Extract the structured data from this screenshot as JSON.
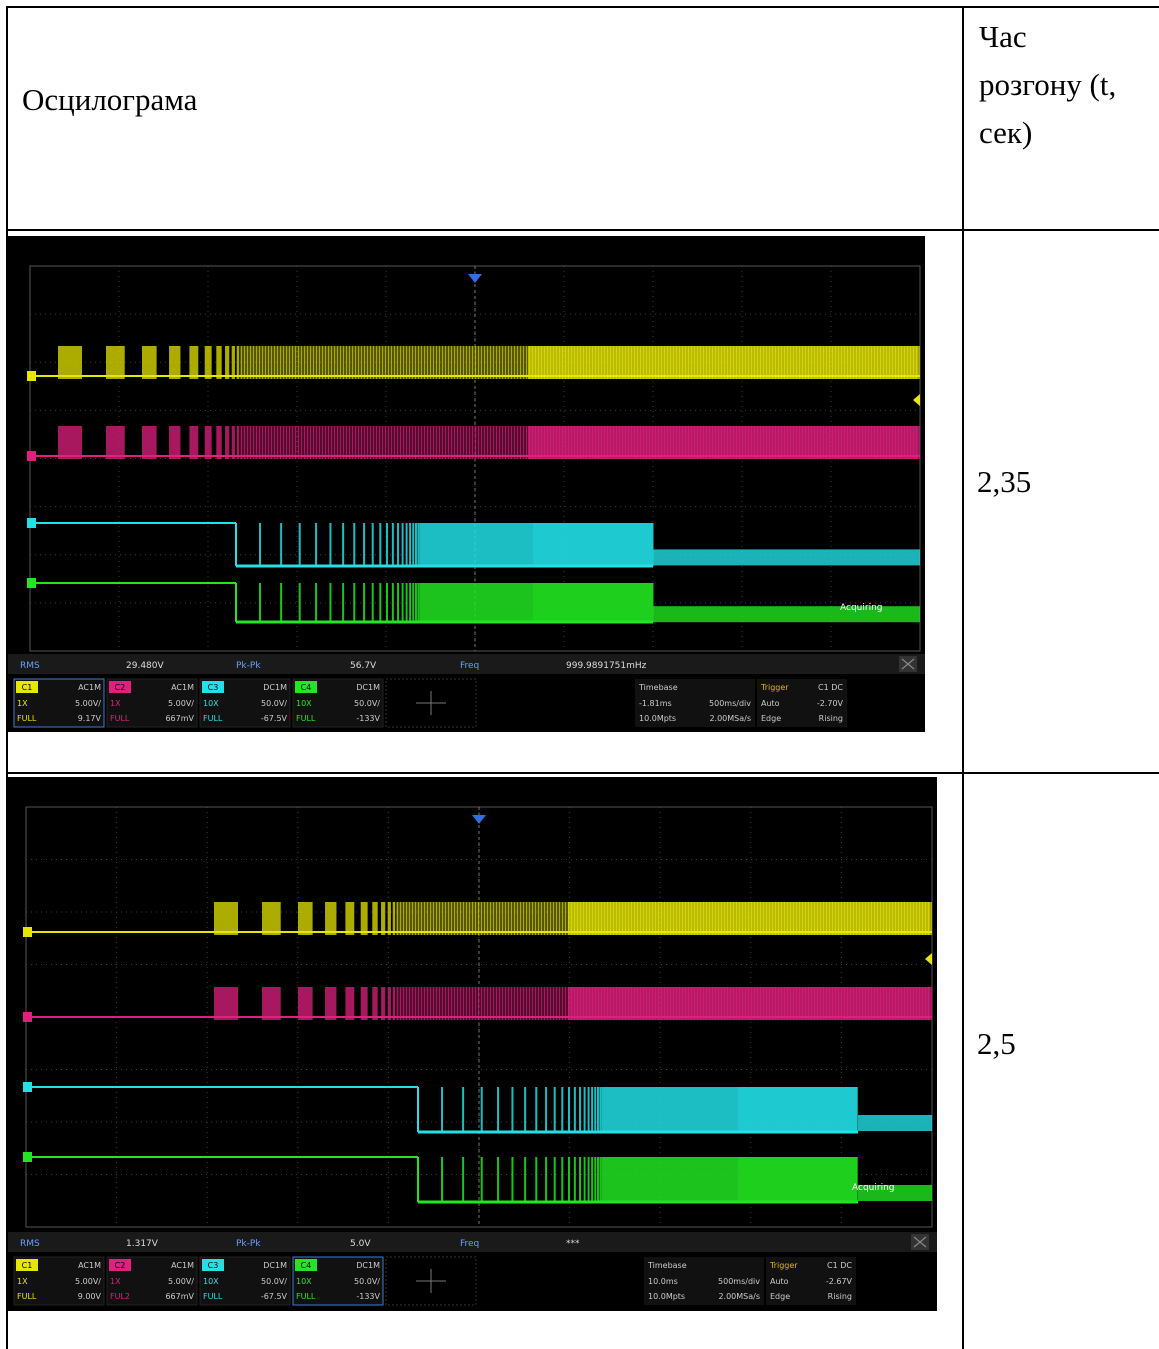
{
  "header": {
    "col1": "Осцилограма",
    "col2_lines": [
      "Час",
      "розгону (t,",
      "сек)"
    ]
  },
  "rows": [
    {
      "value": "2,35",
      "scope": {
        "measure": {
          "rms_label": "RMS",
          "rms": "29.480V",
          "pk_label": "Pk-Pk",
          "pk": "56.7V",
          "freq_label": "Freq",
          "freq": "999.9891751mHz"
        },
        "channels": [
          {
            "id": "C1",
            "coupling": "AC1M",
            "probe": "1X",
            "scale": "5.00V/",
            "bw": "FULL",
            "offset": "9.17V",
            "color": "#e6e600"
          },
          {
            "id": "C2",
            "coupling": "AC1M",
            "probe": "1X",
            "scale": "5.00V/",
            "bw": "FULL",
            "offset": "667mV",
            "color": "#e0207e"
          },
          {
            "id": "C3",
            "coupling": "DC1M",
            "probe": "10X",
            "scale": "50.0V/",
            "bw": "FULL",
            "offset": "-67.5V",
            "color": "#22e0e6"
          },
          {
            "id": "C4",
            "coupling": "DC1M",
            "probe": "10X",
            "scale": "50.0V/",
            "bw": "FULL",
            "offset": "-133V",
            "color": "#22e622"
          }
        ],
        "timebase": {
          "label": "Timebase",
          "delay": "-1.81ms",
          "div": "500ms/div",
          "mpts": "10.0Mpts",
          "rate": "2.00MSa/s"
        },
        "trigger": {
          "label": "Trigger",
          "src": "C1 DC",
          "mode": "Auto",
          "level": "-2.70V",
          "type": "Edge",
          "slope": "Rising"
        },
        "status": "Acquiring"
      }
    },
    {
      "value": "2,5",
      "scope": {
        "measure": {
          "rms_label": "RMS",
          "rms": "1.317V",
          "pk_label": "Pk-Pk",
          "pk": "5.0V",
          "freq_label": "Freq",
          "freq": "***"
        },
        "channels": [
          {
            "id": "C1",
            "coupling": "AC1M",
            "probe": "1X",
            "scale": "5.00V/",
            "bw": "FULL",
            "offset": "9.00V",
            "color": "#e6e600"
          },
          {
            "id": "C2",
            "coupling": "AC1M",
            "probe": "1X",
            "scale": "5.00V/",
            "bw": "FUL2",
            "offset": "667mV",
            "color": "#e0207e"
          },
          {
            "id": "C3",
            "coupling": "DC1M",
            "probe": "10X",
            "scale": "50.0V/",
            "bw": "FULL",
            "offset": "-67.5V",
            "color": "#22e0e6"
          },
          {
            "id": "C4",
            "coupling": "DC1M",
            "probe": "10X",
            "scale": "50.0V/",
            "bw": "FULL",
            "offset": "-133V",
            "color": "#22e622"
          }
        ],
        "timebase": {
          "label": "Timebase",
          "delay": "10.0ms",
          "div": "500ms/div",
          "mpts": "10.0Mpts",
          "rate": "2.00MSa/s"
        },
        "trigger": {
          "label": "Trigger",
          "src": "C1 DC",
          "mode": "Auto",
          "level": "-2.67V",
          "type": "Edge",
          "slope": "Rising"
        },
        "status": "Acquiring"
      }
    }
  ]
}
